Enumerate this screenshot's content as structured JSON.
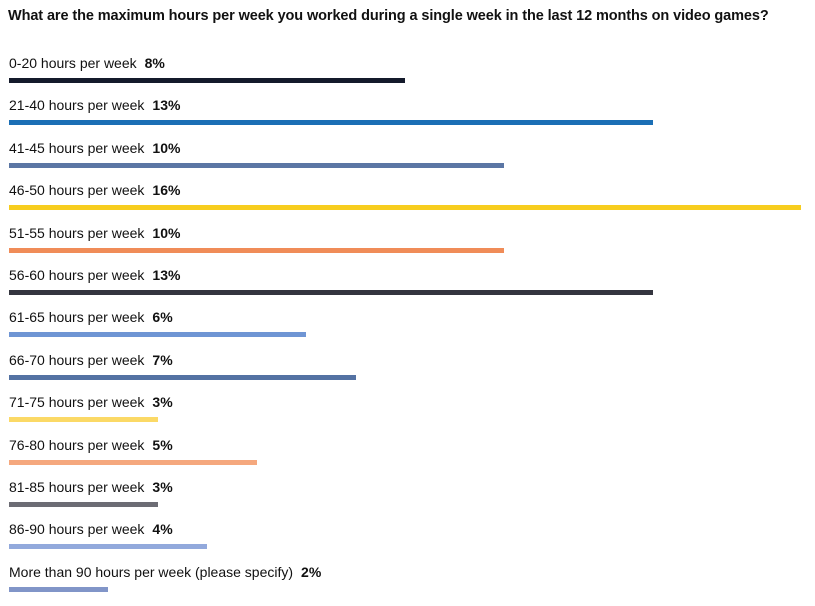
{
  "chart_data": {
    "type": "bar",
    "orientation": "horizontal",
    "title": "What are the maximum hours per week you worked during a single week in the last 12 months on video games?",
    "categories": [
      "0-20 hours per week",
      "21-40 hours per week",
      "41-45 hours per week",
      "46-50 hours per week",
      "51-55 hours per week",
      "56-60 hours per week",
      "61-65 hours per week",
      "66-70 hours per week",
      "71-75 hours per week",
      "76-80 hours per week",
      "81-85 hours per week",
      "86-90 hours per week",
      "More than 90 hours per week (please specify)"
    ],
    "values": [
      8,
      13,
      10,
      16,
      10,
      13,
      6,
      7,
      3,
      5,
      3,
      4,
      2
    ],
    "value_labels": [
      "8%",
      "13%",
      "10%",
      "16%",
      "10%",
      "13%",
      "6%",
      "7%",
      "3%",
      "5%",
      "3%",
      "4%",
      "2%"
    ],
    "unit": "%",
    "colors": [
      "#141a2b",
      "#1b6fb5",
      "#5b76a4",
      "#f7cd1e",
      "#f08c58",
      "#34353f",
      "#6f95d4",
      "#5472a3",
      "#fbd966",
      "#f5a87e",
      "#6c6c74",
      "#92a9dc",
      "#8195c8"
    ],
    "xlim": [
      0,
      16
    ],
    "grid": false,
    "legend": "none"
  }
}
